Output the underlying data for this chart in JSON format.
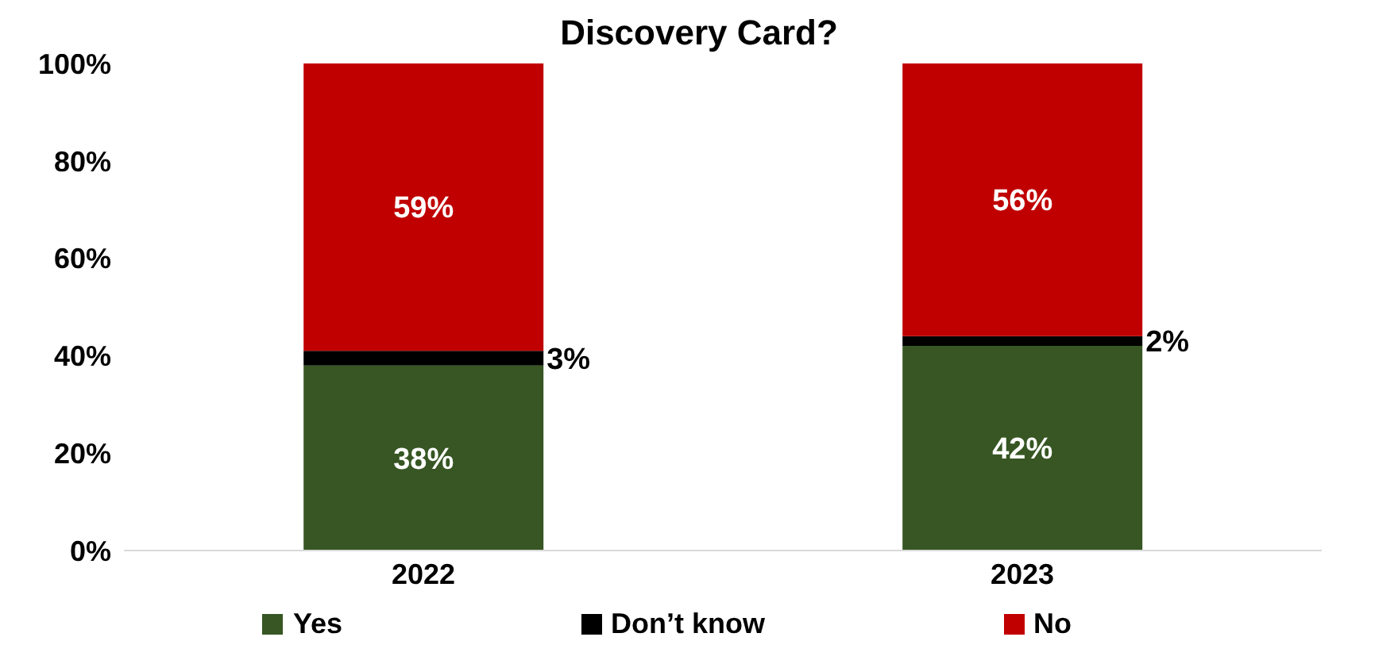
{
  "chart_data": {
    "type": "bar",
    "title": "Discovery Card?",
    "stacked": true,
    "categories": [
      "2022",
      "2023"
    ],
    "series": [
      {
        "name": "Yes",
        "color": "#375623",
        "values": [
          38,
          42
        ],
        "value_labels": [
          "38%",
          "42%"
        ]
      },
      {
        "name": "Don’t know",
        "color": "#000000",
        "values": [
          3,
          2
        ],
        "value_labels": [
          "3%",
          "2%"
        ]
      },
      {
        "name": "No",
        "color": "#c00000",
        "values": [
          59,
          56
        ],
        "value_labels": [
          "59%",
          "56%"
        ]
      }
    ],
    "ylim": [
      0,
      100
    ],
    "yticks": [
      {
        "value": 0,
        "label": "0%"
      },
      {
        "value": 20,
        "label": "20%"
      },
      {
        "value": 40,
        "label": "40%"
      },
      {
        "value": 60,
        "label": "60%"
      },
      {
        "value": 80,
        "label": "80%"
      },
      {
        "value": 100,
        "label": "100%"
      }
    ],
    "legend": "bottom",
    "grid": false
  }
}
